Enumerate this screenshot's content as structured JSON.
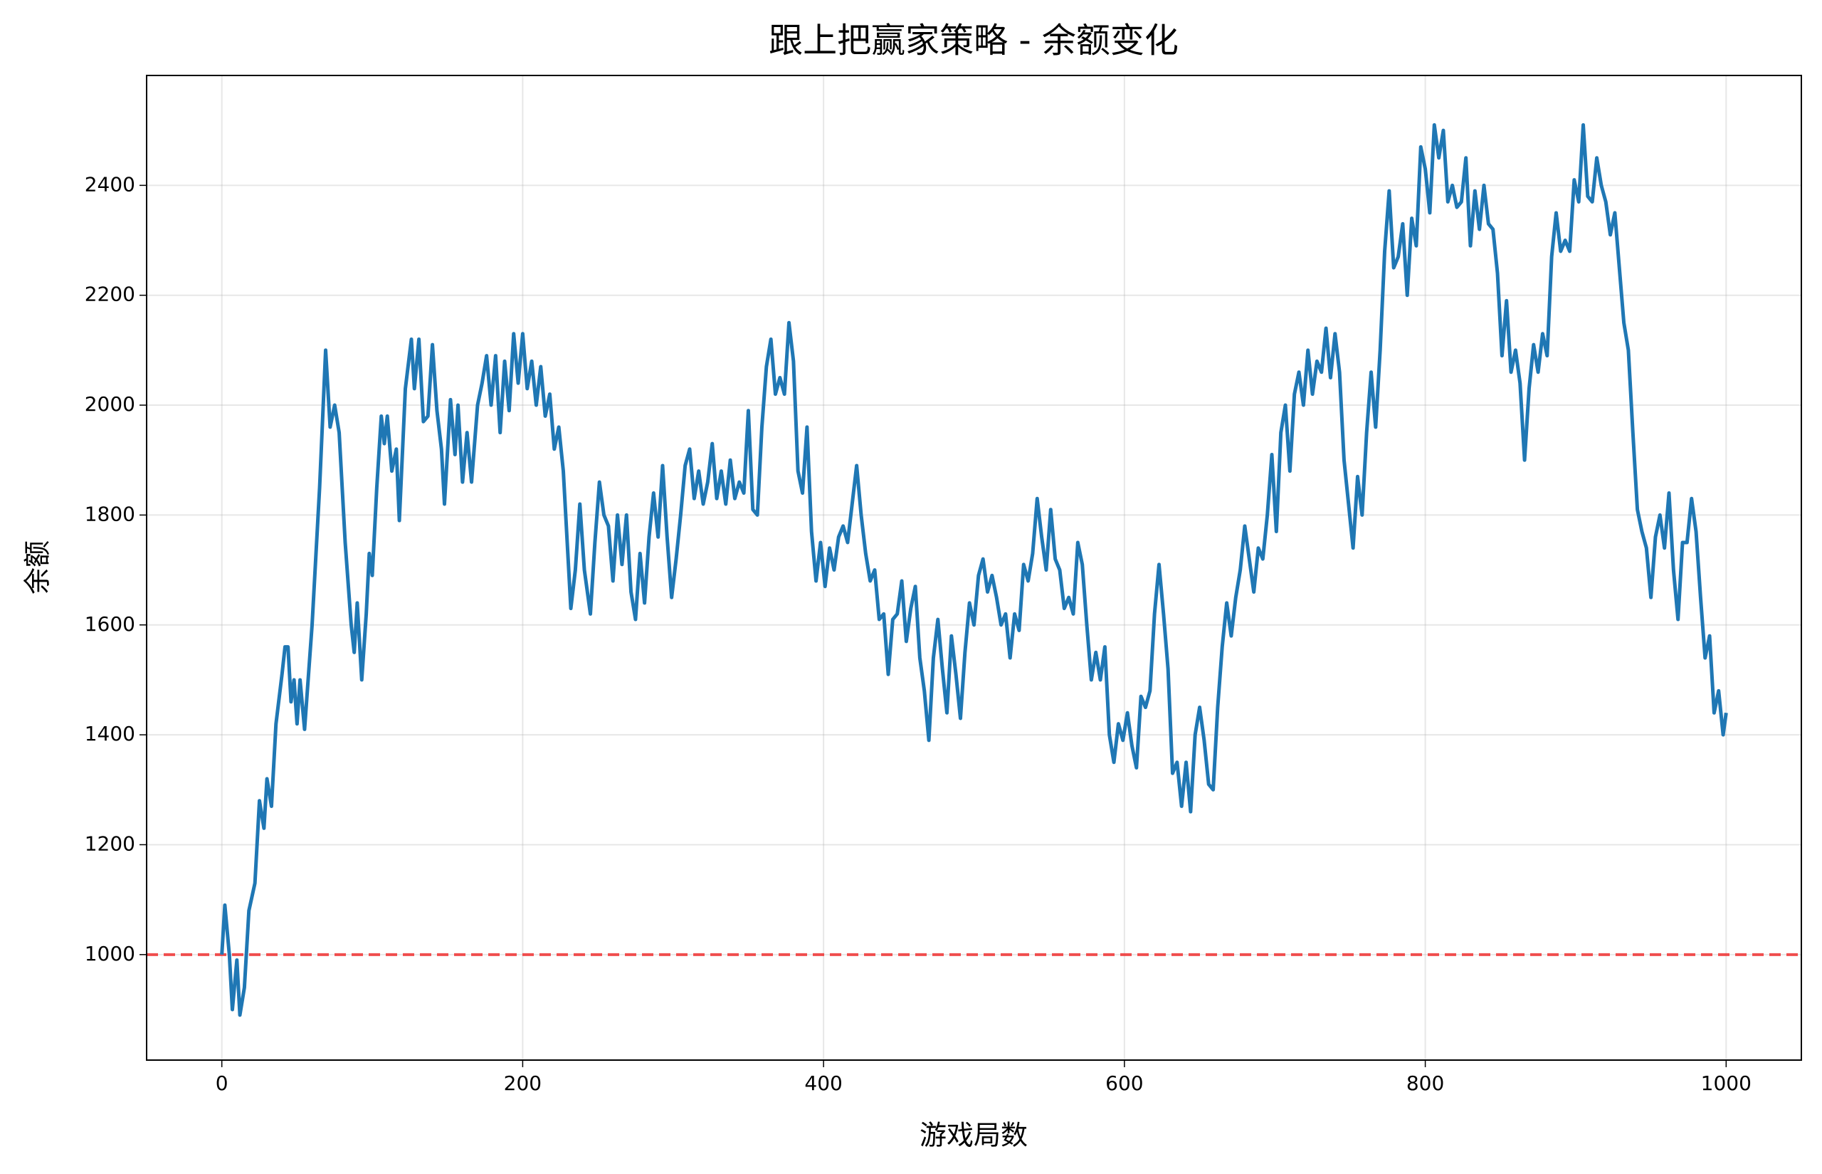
{
  "chart_data": {
    "type": "line",
    "title": "跟上把赢家策略 - 余额变化",
    "x_label": "游戏局数",
    "y_label": "余额",
    "x": [
      0,
      2,
      5,
      7,
      10,
      12,
      15,
      18,
      22,
      25,
      28,
      30,
      33,
      36,
      40,
      42,
      44,
      46,
      48,
      50,
      52,
      55,
      60,
      65,
      69,
      72,
      75,
      78,
      82,
      86,
      88,
      90,
      93,
      96,
      98,
      100,
      103,
      106,
      108,
      110,
      113,
      116,
      118,
      122,
      126,
      128,
      131,
      134,
      137,
      140,
      143,
      146,
      148,
      152,
      155,
      157,
      160,
      163,
      166,
      170,
      173,
      176,
      179,
      182,
      185,
      188,
      191,
      194,
      197,
      200,
      203,
      206,
      209,
      212,
      215,
      218,
      221,
      224,
      227,
      230,
      232,
      235,
      238,
      241,
      245,
      248,
      251,
      254,
      257,
      260,
      263,
      266,
      269,
      272,
      275,
      278,
      281,
      284,
      287,
      290,
      293,
      296,
      299,
      302,
      305,
      308,
      311,
      314,
      317,
      320,
      323,
      326,
      329,
      332,
      335,
      338,
      341,
      344,
      347,
      350,
      353,
      356,
      359,
      362,
      365,
      368,
      371,
      374,
      377,
      380,
      383,
      386,
      389,
      392,
      395,
      398,
      401,
      404,
      407,
      410,
      413,
      416,
      419,
      422,
      425,
      428,
      431,
      434,
      437,
      440,
      443,
      446,
      449,
      452,
      455,
      458,
      461,
      464,
      467,
      470,
      473,
      476,
      479,
      482,
      485,
      488,
      491,
      494,
      497,
      500,
      503,
      506,
      509,
      512,
      515,
      518,
      521,
      524,
      527,
      530,
      533,
      536,
      539,
      542,
      545,
      548,
      551,
      554,
      557,
      560,
      563,
      566,
      569,
      572,
      575,
      578,
      581,
      584,
      587,
      590,
      593,
      596,
      599,
      602,
      605,
      608,
      611,
      614,
      617,
      620,
      623,
      626,
      629,
      632,
      635,
      638,
      641,
      644,
      647,
      650,
      653,
      656,
      659,
      662,
      665,
      668,
      671,
      674,
      677,
      680,
      683,
      686,
      689,
      692,
      695,
      698,
      701,
      704,
      707,
      710,
      713,
      716,
      719,
      722,
      725,
      728,
      731,
      734,
      737,
      740,
      743,
      746,
      749,
      752,
      755,
      758,
      761,
      764,
      767,
      770,
      773,
      776,
      779,
      782,
      785,
      788,
      791,
      794,
      797,
      800,
      803,
      806,
      809,
      812,
      815,
      818,
      821,
      824,
      827,
      830,
      833,
      836,
      839,
      842,
      845,
      848,
      851,
      854,
      857,
      860,
      863,
      866,
      869,
      872,
      875,
      878,
      881,
      884,
      887,
      890,
      893,
      896,
      899,
      902,
      905,
      908,
      911,
      914,
      917,
      920,
      923,
      926,
      929,
      932,
      935,
      938,
      941,
      944,
      947,
      950,
      953,
      956,
      959,
      962,
      965,
      968,
      971,
      974,
      977,
      980,
      983,
      986,
      989,
      992,
      995,
      998,
      1000
    ],
    "series": [
      {
        "name": "余额",
        "color": "#1f77b4",
        "values": [
          1000,
          1090,
          1000,
          900,
          990,
          890,
          940,
          1080,
          1130,
          1280,
          1230,
          1320,
          1270,
          1420,
          1510,
          1560,
          1560,
          1460,
          1500,
          1420,
          1500,
          1410,
          1600,
          1850,
          2100,
          1960,
          2000,
          1950,
          1750,
          1600,
          1550,
          1640,
          1500,
          1620,
          1730,
          1690,
          1850,
          1980,
          1930,
          1980,
          1880,
          1920,
          1790,
          2030,
          2120,
          2030,
          2120,
          1970,
          1980,
          2110,
          1990,
          1920,
          1820,
          2010,
          1910,
          2000,
          1860,
          1950,
          1860,
          2000,
          2040,
          2090,
          2000,
          2090,
          1950,
          2080,
          1990,
          2130,
          2040,
          2130,
          2030,
          2080,
          2000,
          2070,
          1980,
          2020,
          1920,
          1960,
          1880,
          1730,
          1630,
          1700,
          1820,
          1700,
          1620,
          1750,
          1860,
          1800,
          1780,
          1680,
          1800,
          1710,
          1800,
          1660,
          1610,
          1730,
          1640,
          1760,
          1840,
          1760,
          1890,
          1760,
          1650,
          1720,
          1800,
          1890,
          1920,
          1830,
          1880,
          1820,
          1860,
          1930,
          1830,
          1880,
          1820,
          1900,
          1830,
          1860,
          1840,
          1990,
          1810,
          1800,
          1960,
          2070,
          2120,
          2020,
          2050,
          2020,
          2150,
          2080,
          1880,
          1840,
          1960,
          1770,
          1680,
          1750,
          1670,
          1740,
          1700,
          1760,
          1780,
          1750,
          1820,
          1890,
          1800,
          1730,
          1680,
          1700,
          1610,
          1620,
          1510,
          1610,
          1620,
          1680,
          1570,
          1630,
          1670,
          1540,
          1480,
          1390,
          1540,
          1610,
          1520,
          1440,
          1580,
          1510,
          1430,
          1550,
          1640,
          1600,
          1690,
          1720,
          1660,
          1690,
          1650,
          1600,
          1620,
          1540,
          1620,
          1590,
          1710,
          1680,
          1730,
          1830,
          1760,
          1700,
          1810,
          1720,
          1700,
          1630,
          1650,
          1620,
          1750,
          1710,
          1600,
          1500,
          1550,
          1500,
          1560,
          1400,
          1350,
          1420,
          1390,
          1440,
          1380,
          1340,
          1470,
          1450,
          1480,
          1620,
          1710,
          1620,
          1520,
          1330,
          1350,
          1270,
          1350,
          1260,
          1400,
          1450,
          1390,
          1310,
          1300,
          1450,
          1560,
          1640,
          1580,
          1650,
          1700,
          1780,
          1720,
          1660,
          1740,
          1720,
          1800,
          1910,
          1770,
          1950,
          2000,
          1880,
          2020,
          2060,
          2000,
          2100,
          2020,
          2080,
          2060,
          2140,
          2050,
          2130,
          2060,
          1900,
          1820,
          1740,
          1870,
          1800,
          1950,
          2060,
          1960,
          2100,
          2280,
          2390,
          2250,
          2270,
          2330,
          2200,
          2340,
          2290,
          2470,
          2430,
          2350,
          2510,
          2450,
          2500,
          2370,
          2400,
          2360,
          2370,
          2450,
          2290,
          2390,
          2320,
          2400,
          2330,
          2320,
          2240,
          2090,
          2190,
          2060,
          2100,
          2040,
          1900,
          2030,
          2110,
          2060,
          2130,
          2090,
          2270,
          2350,
          2280,
          2300,
          2280,
          2410,
          2370,
          2510,
          2380,
          2370,
          2450,
          2400,
          2370,
          2310,
          2350,
          2250,
          2150,
          2100,
          1950,
          1810,
          1770,
          1740,
          1650,
          1760,
          1800,
          1740,
          1840,
          1700,
          1610,
          1750,
          1750,
          1830,
          1770,
          1650,
          1540,
          1580,
          1440,
          1480,
          1400,
          1440
        ]
      }
    ],
    "reference_line": {
      "y": 1000,
      "color": "#f03c3c",
      "dashed": true
    },
    "xlim": [
      -50,
      1050
    ],
    "ylim": [
      808,
      2600
    ],
    "xticks": [
      0,
      200,
      400,
      600,
      800,
      1000
    ],
    "yticks": [
      1000,
      1200,
      1400,
      1600,
      1800,
      2000,
      2200,
      2400
    ],
    "grid": true
  }
}
